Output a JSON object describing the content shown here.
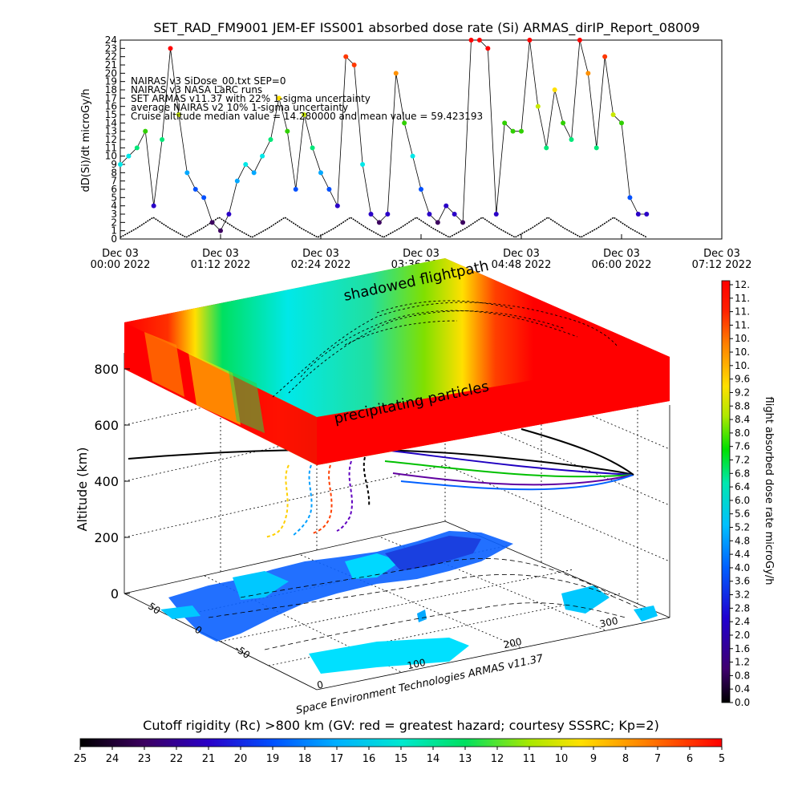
{
  "colors": {
    "rainbow": [
      "#000000",
      "#3c0060",
      "#2a00c8",
      "#0050ff",
      "#00a8ff",
      "#00e8e8",
      "#00e878",
      "#30d000",
      "#c8e800",
      "#ffe000",
      "#ff9000",
      "#ff3800",
      "#ff0000"
    ]
  },
  "chart_data": [
    {
      "type": "line",
      "title": "SET_RAD_FM9001  JEM-EF ISS001 absorbed dose rate (Si) ARMAS_dirIP_Report_08009",
      "ylabel": "dD(Si)/dt microGy/h",
      "ylim": [
        0,
        24
      ],
      "y_ticks": [
        "0",
        "1",
        "2",
        "3",
        "4",
        "5",
        "6",
        "7",
        "8",
        "9",
        "10",
        "11",
        "12",
        "13",
        "14",
        "15",
        "16",
        "17",
        "18",
        "19",
        "20",
        "21",
        "22",
        "23",
        "24"
      ],
      "x_ticks": [
        {
          "line1": "Dec 03",
          "line2": "00:00 2022"
        },
        {
          "line1": "Dec 03",
          "line2": "01:12 2022"
        },
        {
          "line1": "Dec 03",
          "line2": "02:24 2022"
        },
        {
          "line1": "Dec 03",
          "line2": "03:36 2022"
        },
        {
          "line1": "Dec 03",
          "line2": "04:48 2022"
        },
        {
          "line1": "Dec 03",
          "line2": "06:00 2022"
        },
        {
          "line1": "Dec 03",
          "line2": "07:12 2022"
        }
      ],
      "legend": [
        "NAIRAS v3 SiDose_00.txt SEP=0",
        "NAIRAS v3 NASA LaRC runs",
        "SET ARMAS v11.37 with 22% 1-sigma uncertainty",
        "average NAIRAS v2 10% 1-sigma uncertainty",
        "Cruise altitude median value = 14.280000 and mean value = 59.423193"
      ],
      "series": [
        {
          "x_hours": [
            0.0,
            0.1,
            0.2,
            0.3,
            0.4,
            0.5,
            0.6,
            0.7,
            0.8,
            0.9,
            1.0,
            1.1,
            1.2,
            1.3,
            1.4,
            1.5,
            1.6,
            1.7,
            1.8,
            1.9,
            2.0,
            2.1,
            2.2,
            2.3,
            2.4,
            2.5,
            2.6,
            2.7,
            2.8,
            2.9,
            3.0,
            3.1,
            3.2,
            3.3,
            3.4,
            3.5,
            3.6,
            3.7,
            3.8,
            3.9,
            4.0,
            4.1,
            4.2,
            4.3,
            4.4,
            4.5,
            4.6,
            4.7,
            4.8,
            4.9,
            5.0,
            5.1,
            5.2,
            5.3,
            5.4,
            5.5,
            5.6,
            5.7,
            5.8,
            5.9,
            6.0,
            6.1,
            6.2,
            6.3
          ],
          "values": [
            9,
            10,
            11,
            13,
            4,
            12,
            23,
            15,
            8,
            6,
            5,
            2,
            1,
            3,
            7,
            9,
            8,
            10,
            12,
            17,
            13,
            6,
            15,
            11,
            8,
            6,
            4,
            22,
            21,
            9,
            3,
            2,
            3,
            20,
            14,
            10,
            6,
            3,
            2,
            4,
            3,
            2,
            24,
            24,
            23,
            3,
            14,
            13,
            13,
            24,
            16,
            11,
            18,
            14,
            12,
            24,
            20,
            11,
            22,
            15,
            14,
            5,
            3,
            3
          ]
        }
      ],
      "model_values": [
        0.2,
        1.3,
        2.6,
        1.3,
        0.2,
        1.3,
        2.6,
        1.3,
        0.2,
        1.3,
        2.6,
        1.3,
        0.2,
        1.3,
        2.6,
        1.3,
        0.2,
        1.3,
        2.6,
        1.3,
        0.2,
        1.3,
        2.6,
        1.3,
        0.2,
        1.3,
        2.6,
        1.3,
        0.2,
        1.3,
        2.6,
        1.3,
        0.2
      ]
    },
    {
      "type": "heatmap",
      "ylabel": "Altitude (km)",
      "z_ticks": [
        "0",
        "200",
        "400",
        "600",
        "800"
      ],
      "lon_ticks": [
        "0",
        "100",
        "200",
        "300"
      ],
      "lat_ticks": [
        "50",
        "0",
        "-50"
      ],
      "annotations": {
        "top": "shadowed flightpath",
        "middle": "precipitating particles",
        "footer": "Space Environment Technologies ARMAS v11.37"
      },
      "colorbar": {
        "label": "flight absorbed dose rate microGy/h",
        "ticks": [
          "12.",
          "11.",
          "11.",
          "11.",
          "10.",
          "10.",
          "10.",
          "9.6",
          "9.2",
          "8.8",
          "8.4",
          "8.0",
          "7.6",
          "7.2",
          "6.8",
          "6.4",
          "6.0",
          "5.6",
          "5.2",
          "4.8",
          "4.4",
          "4.0",
          "3.6",
          "3.2",
          "2.8",
          "2.4",
          "2.0",
          "1.6",
          "1.2",
          "0.8",
          "0.4",
          "0.0"
        ]
      }
    },
    {
      "type": "heatmap",
      "title": "Cutoff rigidity (Rc) >800 km (GV: red = greatest hazard; courtesy SSSRC; Kp=2)",
      "ticks": [
        "25",
        "24",
        "23",
        "22",
        "21",
        "20",
        "19",
        "18",
        "17",
        "16",
        "15",
        "14",
        "13",
        "12",
        "11",
        "10",
        "9",
        "8",
        "7",
        "6",
        "5"
      ]
    }
  ]
}
